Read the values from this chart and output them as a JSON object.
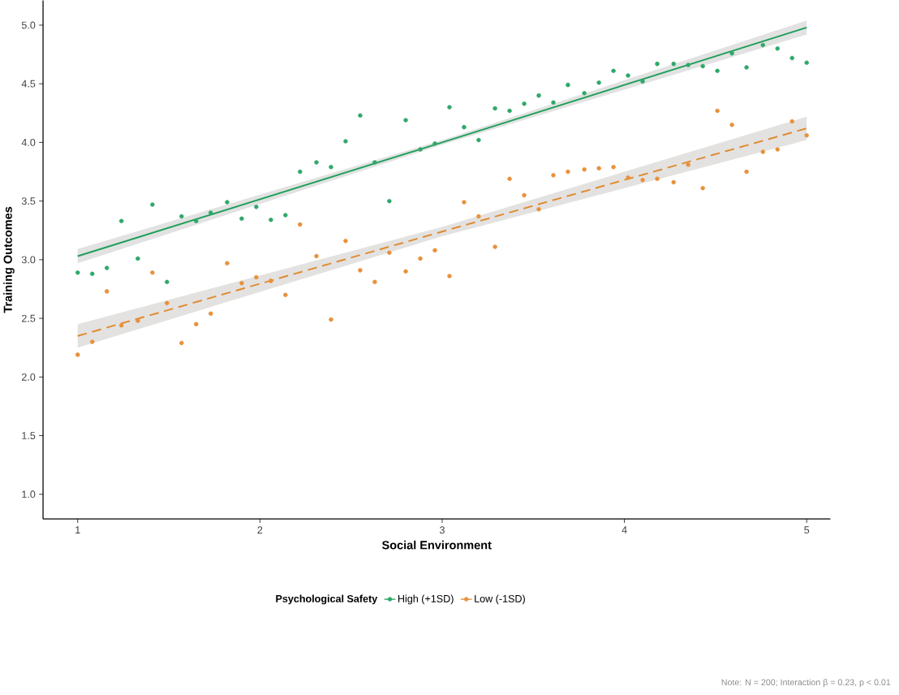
{
  "chart_data": {
    "type": "scatter",
    "xlabel": "Social Environment",
    "ylabel": "Training Outcomes",
    "legend_title": "Psychological Safety",
    "legend": "bottom",
    "marker": "circle",
    "grid": false,
    "xlim": [
      0.81,
      5.13
    ],
    "ylim": [
      0.79,
      5.21
    ],
    "xticks": [
      1,
      2,
      3,
      4,
      5
    ],
    "yticks": [
      {
        "value": 1,
        "label": "1.0"
      },
      {
        "value": 1.5,
        "label": "1.5"
      },
      {
        "value": 2,
        "label": "2.0"
      },
      {
        "value": 2.5,
        "label": "2.5"
      },
      {
        "value": 3,
        "label": "3.0"
      },
      {
        "value": 3.5,
        "label": "3.5"
      },
      {
        "value": 4,
        "label": "4.0"
      },
      {
        "value": 4.5,
        "label": "4.5"
      },
      {
        "value": 5,
        "label": "5.0"
      }
    ],
    "x": [
      1.0,
      1.08,
      1.16,
      1.24,
      1.33,
      1.41,
      1.49,
      1.57,
      1.65,
      1.73,
      1.82,
      1.9,
      1.98,
      2.06,
      2.14,
      2.22,
      2.31,
      2.39,
      2.47,
      2.55,
      2.63,
      2.71,
      2.8,
      2.88,
      2.96,
      3.04,
      3.12,
      3.2,
      3.29,
      3.37,
      3.45,
      3.53,
      3.61,
      3.69,
      3.78,
      3.86,
      3.94,
      4.02,
      4.1,
      4.18,
      4.27,
      4.35,
      4.43,
      4.51,
      4.59,
      4.67,
      4.76,
      4.84,
      4.92,
      5.0
    ],
    "series": [
      {
        "name": "High (+1SD)",
        "color": "#2fa86a",
        "values": [
          2.89,
          2.88,
          2.93,
          3.33,
          3.01,
          3.47,
          2.81,
          3.37,
          3.33,
          3.4,
          3.49,
          3.35,
          3.45,
          3.34,
          3.38,
          3.75,
          3.83,
          3.79,
          4.01,
          4.23,
          3.83,
          3.5,
          4.19,
          3.94,
          3.99,
          4.3,
          4.13,
          4.02,
          4.29,
          4.27,
          4.33,
          4.4,
          4.34,
          4.49,
          4.42,
          4.51,
          4.61,
          4.57,
          4.52,
          4.67,
          4.67,
          4.66,
          4.65,
          4.61,
          4.76,
          4.64,
          4.83,
          4.8,
          4.72,
          4.68
        ]
      },
      {
        "name": "Low (-1SD)",
        "color": "#e8913a",
        "values": [
          2.19,
          2.3,
          2.73,
          2.44,
          2.48,
          2.89,
          2.63,
          2.29,
          2.45,
          2.54,
          2.97,
          2.8,
          2.85,
          2.82,
          2.7,
          3.3,
          3.03,
          2.49,
          3.16,
          2.91,
          2.81,
          3.06,
          2.9,
          3.01,
          3.08,
          2.86,
          3.49,
          3.37,
          3.11,
          3.69,
          3.55,
          3.43,
          3.72,
          3.75,
          3.77,
          3.78,
          3.79,
          3.7,
          3.68,
          3.69,
          3.66,
          3.81,
          3.61,
          4.27,
          4.15,
          3.75,
          3.92,
          3.94,
          4.18,
          4.06
        ]
      },
      {
        "type": "line",
        "marker": "none",
        "color": "#1e9e5a",
        "line_style": "solid",
        "x": [
          1,
          3,
          5
        ],
        "values": [
          3.03,
          4.0,
          4.98
        ],
        "lower": [
          2.97,
          3.98,
          4.92
        ],
        "upper": [
          3.09,
          4.02,
          5.04
        ]
      },
      {
        "type": "line",
        "marker": "none",
        "color": "#e08a2e",
        "line_style": "dashed",
        "x": [
          1,
          3,
          5
        ],
        "values": [
          2.35,
          3.24,
          4.12
        ],
        "lower": [
          2.25,
          3.2,
          4.02
        ],
        "upper": [
          2.45,
          3.28,
          4.22
        ]
      }
    ],
    "annotations": [
      "Note: N = 200; Interaction β = 0.23, p < 0.01"
    ]
  }
}
